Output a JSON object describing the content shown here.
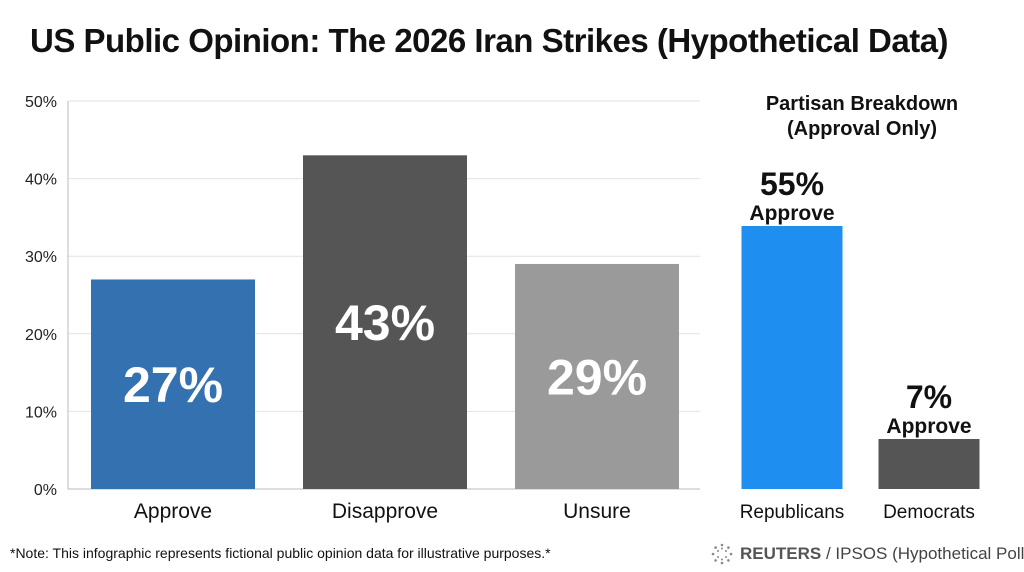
{
  "title": "US Public Opinion: The 2026 Iran Strikes (Hypothetical Data)",
  "chart_data": [
    {
      "type": "bar",
      "title": "",
      "categories": [
        "Approve",
        "Disapprove",
        "Unsure"
      ],
      "values": [
        27,
        43,
        29
      ],
      "data_labels": [
        "27%",
        "43%",
        "29%"
      ],
      "colors": [
        "#3371B0",
        "#555555",
        "#9A9A9A"
      ],
      "ylim": [
        0,
        50
      ],
      "yticks": [
        "0%",
        "10%",
        "20%",
        "30%",
        "40%",
        "50%"
      ],
      "grid": true
    },
    {
      "type": "bar",
      "title": "Partisan Breakdown",
      "subtitle": "(Approval Only)",
      "categories": [
        "Republicans",
        "Democrats"
      ],
      "values": [
        55,
        7
      ],
      "data_labels": [
        "55%",
        "7%"
      ],
      "sub_labels": [
        "Approve",
        "Approve"
      ],
      "colors": [
        "#1E8FF0",
        "#555555"
      ]
    }
  ],
  "footer": {
    "note": "*Note: This infographic represents fictional public opinion data for illustrative purposes.*",
    "source_brand": "REUTERS",
    "source_rest": " / IPSOS (Hypothetical Poll Data)",
    "logo_icon": "reuters-dot-ring-icon"
  }
}
